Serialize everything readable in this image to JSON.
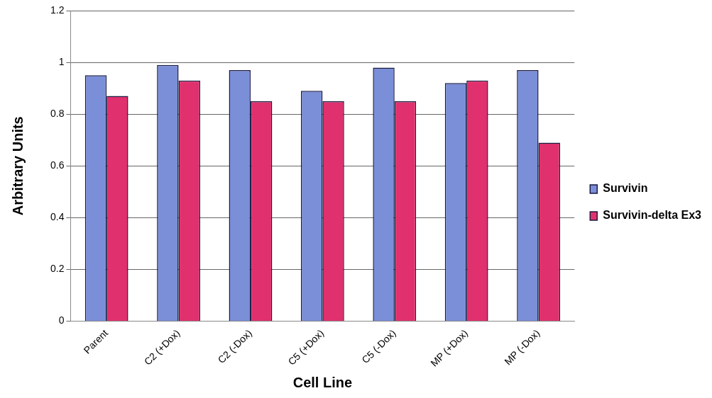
{
  "chart_data": {
    "type": "bar",
    "xlabel": "Cell Line",
    "ylabel": "Arbitrary Units",
    "categories": [
      "Parent",
      "C2 (+Dox)",
      "C2 (-Dox)",
      "C5 (+Dox)",
      "C5 (-Dox)",
      "MP (+Dox)",
      "MP (-Dox)"
    ],
    "series": [
      {
        "name": "Survivin",
        "color": "#7b8ed8",
        "values": [
          0.95,
          0.99,
          0.97,
          0.89,
          0.98,
          0.92,
          0.97
        ]
      },
      {
        "name": "Survivin-delta Ex3",
        "color": "#e0306e",
        "values": [
          0.87,
          0.93,
          0.85,
          0.85,
          0.85,
          0.93,
          0.69
        ]
      }
    ],
    "ylim": [
      0,
      1.2
    ],
    "yticks": [
      0,
      0.2,
      0.4,
      0.6,
      0.8,
      1,
      1.2
    ],
    "grid": "y",
    "legend": "right"
  }
}
